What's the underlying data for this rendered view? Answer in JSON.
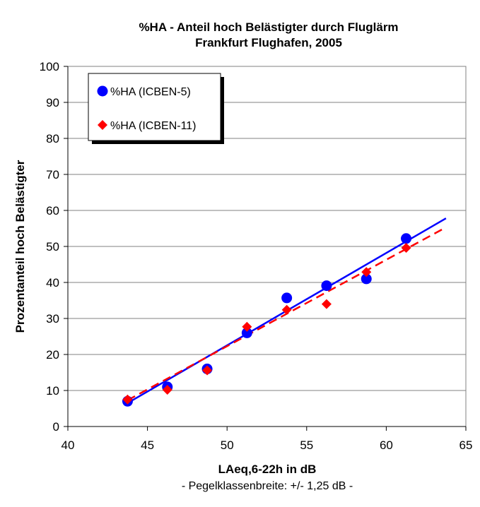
{
  "chart_data": {
    "type": "scatter",
    "title": "%HA - Anteil hoch Belästigter durch Fluglärm",
    "subtitle": "Frankfurt Flughafen, 2005",
    "xlabel": "LAeq,6-22h in dB",
    "xlabel_note": "- Pegelklassenbreite: +/- 1,25 dB -",
    "ylabel": "Prozentanteil hoch Belästigter",
    "xlim": [
      40,
      65
    ],
    "ylim": [
      0,
      100
    ],
    "x_ticks": [
      40,
      45,
      50,
      55,
      60,
      65
    ],
    "y_ticks": [
      0,
      10,
      20,
      30,
      40,
      50,
      60,
      70,
      80,
      90,
      100
    ],
    "grid": "horizontal",
    "legend_position": "top-left",
    "series": [
      {
        "name": "%HA (ICBEN-5)",
        "marker": "circle",
        "color": "#0000ff",
        "x": [
          43.75,
          46.25,
          48.75,
          51.25,
          53.75,
          56.25,
          58.75,
          61.25
        ],
        "y": [
          7.0,
          11.0,
          16.0,
          26.0,
          35.7,
          39.1,
          41.0,
          52.2
        ],
        "trend": {
          "style": "solid",
          "x": [
            43.75,
            63.75
          ],
          "y": [
            6.5,
            57.8
          ]
        }
      },
      {
        "name": "%HA (ICBEN-11)",
        "marker": "diamond",
        "color": "#ff0000",
        "x": [
          43.75,
          46.25,
          48.75,
          51.25,
          53.75,
          56.25,
          58.75,
          61.25
        ],
        "y": [
          7.5,
          10.2,
          15.6,
          27.7,
          32.4,
          34.0,
          42.9,
          49.6
        ],
        "trend": {
          "style": "dashed",
          "x": [
            43.75,
            63.75
          ],
          "y": [
            7.3,
            55.3
          ]
        }
      }
    ]
  }
}
